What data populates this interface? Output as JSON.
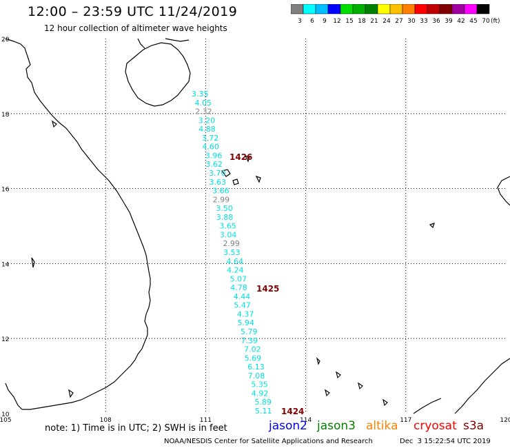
{
  "header": {
    "title": "12:00 – 23:59 UTC 11/24/2019",
    "subtitle": "12 hour collection of altimeter wave heights"
  },
  "legend": {
    "unit": "(ft)",
    "bins": [
      {
        "label": "3",
        "color": "#808080"
      },
      {
        "label": "6",
        "color": "#00ffff"
      },
      {
        "label": "9",
        "color": "#00bfff"
      },
      {
        "label": "12",
        "color": "#0000ff"
      },
      {
        "label": "15",
        "color": "#00e000"
      },
      {
        "label": "18",
        "color": "#00b000"
      },
      {
        "label": "21",
        "color": "#008000"
      },
      {
        "label": "24",
        "color": "#ffff00"
      },
      {
        "label": "27",
        "color": "#ffc000"
      },
      {
        "label": "30",
        "color": "#ff8000"
      },
      {
        "label": "33",
        "color": "#ff0000"
      },
      {
        "label": "36",
        "color": "#c00000"
      },
      {
        "label": "39",
        "color": "#800000"
      },
      {
        "label": "42",
        "color": "#a000a0"
      },
      {
        "label": "45",
        "color": "#ff00ff"
      },
      {
        "label": "70",
        "color": "#000000"
      }
    ]
  },
  "axes": {
    "lon_ticks": [
      "105",
      "108",
      "111",
      "114",
      "117",
      "120"
    ],
    "lat_ticks": [
      "20",
      "18",
      "16",
      "14",
      "12",
      "10"
    ]
  },
  "track_labels": [
    {
      "value": "3.35",
      "color": "#00e0e0"
    },
    {
      "value": "4.05",
      "color": "#00e0e0"
    },
    {
      "value": "2.32",
      "color": "#808080"
    },
    {
      "value": "3.20",
      "color": "#00e0e0"
    },
    {
      "value": "4.88",
      "color": "#00e0e0"
    },
    {
      "value": "3.72",
      "color": "#00e0e0"
    },
    {
      "value": "4.60",
      "color": "#00e0e0"
    },
    {
      "value": "3.96",
      "color": "#00e0e0"
    },
    {
      "value": "3.62",
      "color": "#00e0e0"
    },
    {
      "value": "3.70",
      "color": "#00e0e0"
    },
    {
      "value": "3.63",
      "color": "#00e0e0"
    },
    {
      "value": "3.66",
      "color": "#00e0e0"
    },
    {
      "value": "2.99",
      "color": "#808080"
    },
    {
      "value": "3.50",
      "color": "#00e0e0"
    },
    {
      "value": "3.88",
      "color": "#00e0e0"
    },
    {
      "value": "3.65",
      "color": "#00e0e0"
    },
    {
      "value": "3.04",
      "color": "#00e0e0"
    },
    {
      "value": "2.99",
      "color": "#808080"
    },
    {
      "value": "3.53",
      "color": "#00e0e0"
    },
    {
      "value": "4.64",
      "color": "#00e0e0"
    },
    {
      "value": "4.24",
      "color": "#00e0e0"
    },
    {
      "value": "5.07",
      "color": "#00e0e0"
    },
    {
      "value": "4.78",
      "color": "#00e0e0"
    },
    {
      "value": "4.44",
      "color": "#00e0e0"
    },
    {
      "value": "5.47",
      "color": "#00e0e0"
    },
    {
      "value": "4.37",
      "color": "#00e0e0"
    },
    {
      "value": "5.94",
      "color": "#00e0e0"
    },
    {
      "value": "5.79",
      "color": "#00e0e0"
    },
    {
      "value": "7.39",
      "color": "#00e0e0"
    },
    {
      "value": "7.02",
      "color": "#00e0e0"
    },
    {
      "value": "5.69",
      "color": "#00e0e0"
    },
    {
      "value": "6.13",
      "color": "#00e0e0"
    },
    {
      "value": "7.08",
      "color": "#00e0e0"
    },
    {
      "value": "5.35",
      "color": "#00e0e0"
    },
    {
      "value": "4.92",
      "color": "#00e0e0"
    },
    {
      "value": "5.89",
      "color": "#00e0e0"
    },
    {
      "value": "5.11",
      "color": "#00e0e0"
    }
  ],
  "time_labels": [
    {
      "text": "1426",
      "color": "#800000"
    },
    {
      "text": "1425",
      "color": "#800000"
    },
    {
      "text": "1424",
      "color": "#800000"
    }
  ],
  "footer": {
    "note": "note: 1) Time is in UTC; 2) SWH is in feet",
    "satellites": [
      {
        "name": "jason2",
        "color": "#0000ff"
      },
      {
        "name": "jason3",
        "color": "#008000"
      },
      {
        "name": "altika",
        "color": "#ff8000"
      },
      {
        "name": "cryosat",
        "color": "#ff0000"
      },
      {
        "name": "s3a",
        "color": "#800000"
      }
    ],
    "credit": "NOAA/NESDIS Center for Satellite Applications and Research",
    "timestamp": "Dec  3 15:22:54 UTC 2019"
  }
}
